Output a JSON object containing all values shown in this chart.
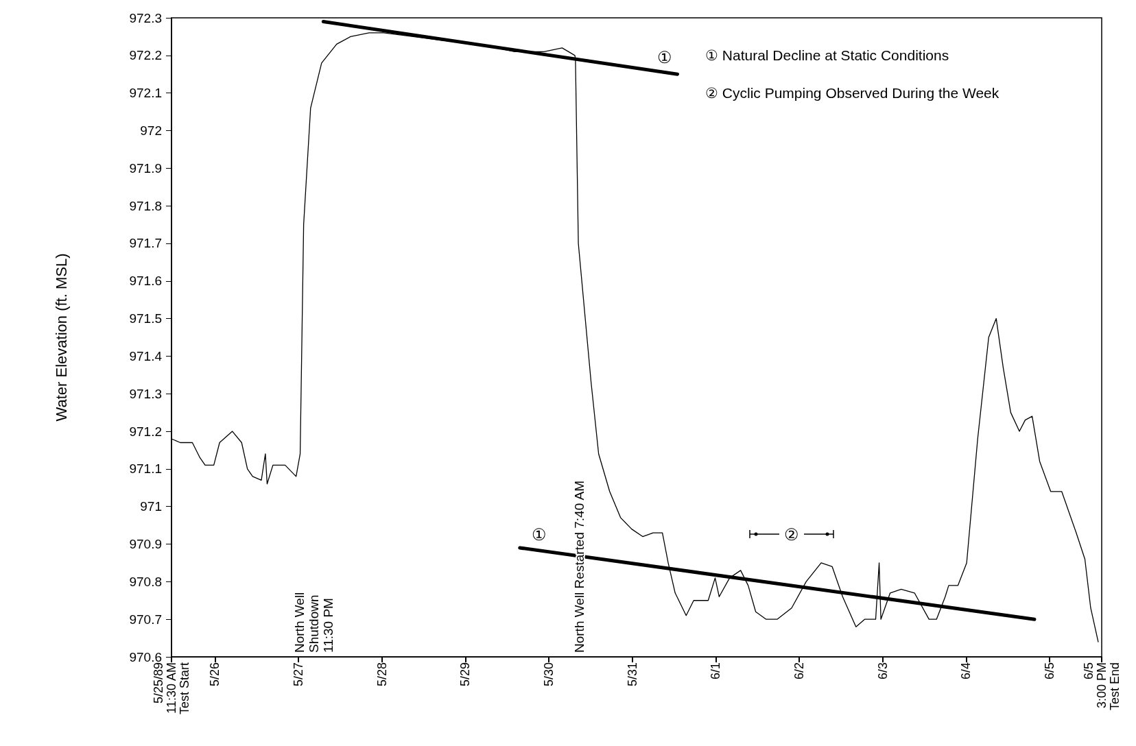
{
  "chart_data": {
    "type": "line",
    "ylabel": "Water Elevation (ft. MSL)",
    "xlim": [
      "1989-05-25T11:30",
      "1989-06-05T15:00"
    ],
    "xticks": [
      {
        "value": "1989-05-25T11:30",
        "label": "5/25/89\n11:30 AM\nTest Start"
      },
      {
        "value": "1989-05-26",
        "label": "5/26"
      },
      {
        "value": "1989-05-27",
        "label": "5/27"
      },
      {
        "value": "1989-05-28",
        "label": "5/28"
      },
      {
        "value": "1989-05-29",
        "label": "5/29"
      },
      {
        "value": "1989-05-30",
        "label": "5/30"
      },
      {
        "value": "1989-05-31",
        "label": "5/31"
      },
      {
        "value": "1989-06-01",
        "label": "6/1"
      },
      {
        "value": "1989-06-02",
        "label": "6/2"
      },
      {
        "value": "1989-06-03",
        "label": "6/3"
      },
      {
        "value": "1989-06-04",
        "label": "6/4"
      },
      {
        "value": "1989-06-05",
        "label": "6/5"
      },
      {
        "value": "1989-06-05T15:00",
        "label": "6/5\n3:00 PM\nTest End"
      }
    ],
    "ylim": [
      970.6,
      972.3
    ],
    "yticks": [
      970.6,
      970.7,
      970.8,
      970.9,
      971,
      971.1,
      971.2,
      971.3,
      971.4,
      971.5,
      971.6,
      971.7,
      971.8,
      971.9,
      972,
      972.1,
      972.2,
      972.3
    ],
    "grid": false,
    "marker": "none",
    "line_style": "solid",
    "series": [
      {
        "color": "#000000",
        "x": [
          "1989-05-25T11:30",
          "1989-05-25T14:00",
          "1989-05-25T17:30",
          "1989-05-25T19:40",
          "1989-05-25T21:10",
          "1989-05-25T23:40",
          "1989-05-26T01:20",
          "1989-05-26T05:00",
          "1989-05-26T07:40",
          "1989-05-26T09:20",
          "1989-05-26T10:50",
          "1989-05-26T13:20",
          "1989-05-26T14:30",
          "1989-05-26T15:00",
          "1989-05-26T16:40",
          "1989-05-26T20:10",
          "1989-05-26T23:20",
          "1989-05-27T00:30",
          "1989-05-27T01:30",
          "1989-05-27T03:30",
          "1989-05-27T06:40",
          "1989-05-27T11:00",
          "1989-05-27T15:00",
          "1989-05-27T20:20",
          "1989-05-28T00:30",
          "1989-05-28T09:00",
          "1989-05-28T17:20",
          "1989-05-29T03:50",
          "1989-05-29T14:10",
          "1989-05-29T22:40",
          "1989-05-30T03:50",
          "1989-05-30T07:30",
          "1989-05-30T07:40",
          "1989-05-30T08:30",
          "1989-05-30T12:10",
          "1989-05-30T14:20",
          "1989-05-30T17:30",
          "1989-05-30T20:40",
          "1989-05-30T23:50",
          "1989-05-31T03:00",
          "1989-05-31T06:00",
          "1989-05-31T08:40",
          "1989-05-31T10:20",
          "1989-05-31T12:20",
          "1989-05-31T15:30",
          "1989-05-31T17:40",
          "1989-05-31T21:50",
          "1989-05-31T23:50",
          "1989-06-01T01:00",
          "1989-06-01T04:00",
          "1989-06-01T07:10",
          "1989-06-01T09:20",
          "1989-06-01T11:30",
          "1989-06-01T14:30",
          "1989-06-01T17:40",
          "1989-06-01T21:50",
          "1989-06-02T02:00",
          "1989-06-02T06:20",
          "1989-06-02T09:30",
          "1989-06-02T12:30",
          "1989-06-02T16:20",
          "1989-06-02T18:50",
          "1989-06-02T22:00",
          "1989-06-02T23:00",
          "1989-06-02T23:30",
          "1989-06-03T02:10",
          "1989-06-03T05:20",
          "1989-06-03T09:10",
          "1989-06-03T13:20",
          "1989-06-03T15:30",
          "1989-06-03T18:00",
          "1989-06-03T19:00",
          "1989-06-03T21:40",
          "1989-06-04T00:10",
          "1989-06-04T03:20",
          "1989-06-04T06:30",
          "1989-06-04T08:40",
          "1989-06-04T10:40",
          "1989-06-04T12:50",
          "1989-06-04T15:20",
          "1989-06-04T17:00",
          "1989-06-04T19:00",
          "1989-06-04T21:10",
          "1989-06-05T00:20",
          "1989-06-05T03:30",
          "1989-06-05T07:40",
          "1989-06-05T10:10",
          "1989-06-05T11:50",
          "1989-06-05T14:00"
        ],
        "values": [
          971.18,
          971.17,
          971.17,
          971.13,
          971.11,
          971.11,
          971.17,
          971.2,
          971.17,
          971.1,
          971.08,
          971.07,
          971.14,
          971.06,
          971.11,
          971.11,
          971.08,
          971.14,
          971.75,
          972.06,
          972.18,
          972.23,
          972.25,
          972.26,
          972.26,
          972.25,
          972.24,
          972.23,
          972.21,
          972.21,
          972.22,
          972.2,
          972.19,
          971.7,
          971.33,
          971.14,
          971.04,
          970.97,
          970.94,
          970.92,
          970.93,
          970.93,
          970.85,
          970.77,
          970.71,
          970.75,
          970.75,
          970.81,
          970.76,
          970.81,
          970.83,
          970.79,
          970.72,
          970.7,
          970.7,
          970.73,
          970.8,
          970.85,
          970.84,
          970.76,
          970.68,
          970.7,
          970.7,
          970.85,
          970.7,
          970.77,
          970.78,
          970.77,
          970.7,
          970.7,
          970.76,
          970.79,
          970.79,
          970.85,
          971.18,
          971.45,
          971.5,
          971.37,
          971.25,
          971.2,
          971.23,
          971.24,
          971.12,
          971.04,
          971.04,
          970.93,
          970.86,
          970.73,
          970.64
        ]
      },
      {
        "color": "#000000",
        "x": [
          "1989-05-27T07:10",
          "1989-05-31T13:00"
        ],
        "values": [
          972.29,
          972.15
        ]
      },
      {
        "color": "#000000",
        "x": [
          "1989-05-29T15:40",
          "1989-06-04T19:40"
        ],
        "values": [
          970.89,
          970.7
        ]
      }
    ],
    "annotations": [
      "① Natural Decline at Static Conditions",
      "② Cyclic Pumping Observed During the Week",
      "North Well\nShutdown\n11:30 PM",
      "North Well Restarted 7:40 AM",
      "①",
      "①",
      "②"
    ]
  }
}
